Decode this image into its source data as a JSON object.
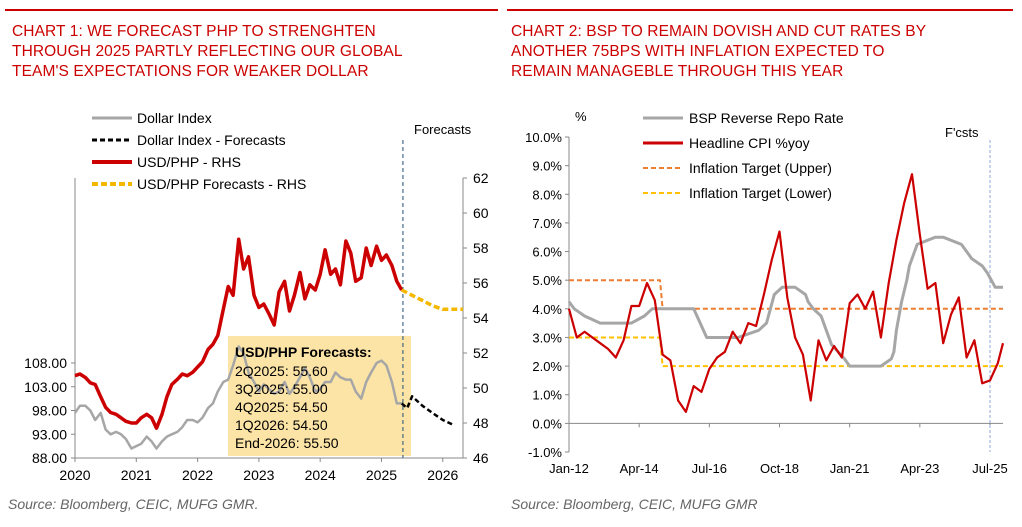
{
  "colors": {
    "accent": "#cc0000",
    "grey": "#a6a6a6",
    "black": "#000000",
    "gold": "#f5b800",
    "orange": "#ed7d31",
    "yellow": "#ffc000",
    "vline": "#1f4e79",
    "callout": "#fce4a6"
  },
  "chart1": {
    "title_lines": [
      "CHART 1: WE FORECAST PHP TO STRENGHTEN",
      "THROUGH 2025 PARTLY REFLECTING OUR GLOBAL",
      "TEAM'S EXPECTATIONS FOR WEAKER DOLLAR"
    ],
    "source": "Source: Bloomberg, CEIC, MUFG GMR.",
    "forecast_label": "Forecasts",
    "callout": {
      "title": "USD/PHP Forecasts:",
      "lines": [
        "2Q2025: 55.60",
        "3Q2025: 55.00",
        "4Q2025: 54.50",
        "1Q2026: 54.50",
        "End-2026: 55.50"
      ]
    },
    "legend": [
      "Dollar Index",
      "Dollar Index - Forecasts",
      "USD/PHP - RHS",
      "USD/PHP Forecasts - RHS"
    ],
    "left_ticks": [
      "108.00",
      "103.00",
      "98.00",
      "93.00",
      "88.00"
    ],
    "right_ticks": [
      "62",
      "60",
      "58",
      "56",
      "54",
      "52",
      "50",
      "48",
      "46"
    ],
    "x_ticks": [
      "2020",
      "2021",
      "2022",
      "2023",
      "2024",
      "2025",
      "2026"
    ]
  },
  "chart2": {
    "title_lines": [
      "CHART 2: BSP TO REMAIN DOVISH AND CUT RATES BY",
      "ANOTHER 75BPS WITH INFLATION EXPECTED TO",
      "REMAIN MANAGEBLE THROUGH THIS YEAR"
    ],
    "source": "Source: Bloomberg, CEIC, MUFG GMR",
    "unit": "%",
    "forecast_label": "F'csts",
    "legend": [
      "BSP Reverse Repo Rate",
      "Headline CPI %yoy",
      "Inflation Target (Upper)",
      "Inflation Target (Lower)"
    ],
    "y_ticks": [
      "10.0%",
      "9.0%",
      "8.0%",
      "7.0%",
      "6.0%",
      "5.0%",
      "4.0%",
      "3.0%",
      "2.0%",
      "1.0%",
      "0.0%",
      "-1.0%"
    ],
    "x_ticks": [
      "Jan-12",
      "Apr-14",
      "Jul-16",
      "Oct-18",
      "Jan-21",
      "Apr-23",
      "Jul-25"
    ]
  },
  "chart_data": [
    {
      "type": "line",
      "title": "CHART 1: WE FORECAST PHP TO STRENGHTEN THROUGH 2025 PARTLY REFLECTING OUR GLOBAL TEAM'S EXPECTATIONS FOR WEAKER DOLLAR",
      "x_range": [
        2020,
        2026.33
      ],
      "ylim_left": [
        88,
        110
      ],
      "ylim_right": [
        46,
        62
      ],
      "forecast_start": 2025.35,
      "series": [
        {
          "name": "Dollar Index",
          "axis": "left",
          "x": [
            2020,
            2020.08,
            2020.17,
            2020.25,
            2020.33,
            2020.42,
            2020.5,
            2020.58,
            2020.67,
            2020.75,
            2020.83,
            2020.92,
            2021,
            2021.08,
            2021.17,
            2021.25,
            2021.33,
            2021.42,
            2021.5,
            2021.58,
            2021.67,
            2021.75,
            2021.83,
            2021.92,
            2022,
            2022.08,
            2022.17,
            2022.25,
            2022.33,
            2022.42,
            2022.5,
            2022.58,
            2022.67,
            2022.75,
            2022.83,
            2022.92,
            2023,
            2023.08,
            2023.17,
            2023.25,
            2023.33,
            2023.42,
            2023.5,
            2023.58,
            2023.67,
            2023.75,
            2023.83,
            2023.92,
            2024,
            2024.08,
            2024.17,
            2024.25,
            2024.33,
            2024.42,
            2024.5,
            2024.58,
            2024.67,
            2024.75,
            2024.83,
            2024.92,
            2025,
            2025.08,
            2025.17,
            2025.25,
            2025.33
          ],
          "y": [
            97.5,
            99,
            99,
            98,
            96,
            97.5,
            94,
            93,
            93.5,
            93,
            92,
            90,
            90.5,
            91,
            92.5,
            91.5,
            90,
            91.5,
            92.5,
            93,
            93.5,
            94.5,
            96,
            96,
            95.5,
            96.5,
            98.5,
            99.5,
            102,
            104,
            104.5,
            107.5,
            111.5,
            110,
            106,
            104,
            102,
            103.5,
            102.5,
            101.5,
            102,
            104,
            101.5,
            103,
            105,
            107,
            105,
            102,
            102.5,
            104,
            104,
            106,
            105,
            104.5,
            104.5,
            102,
            100.5,
            104,
            106,
            108,
            108.5,
            107.5,
            104,
            99.5,
            99.5
          ]
        },
        {
          "name": "Dollar Index - Forecasts",
          "axis": "left",
          "x": [
            2025.33,
            2025.42,
            2025.5,
            2025.67,
            2025.83,
            2026,
            2026.17
          ],
          "y": [
            99.5,
            98.5,
            101,
            99,
            97.5,
            96,
            95
          ]
        },
        {
          "name": "USD/PHP - RHS",
          "axis": "right",
          "x": [
            2020,
            2020.08,
            2020.17,
            2020.25,
            2020.33,
            2020.42,
            2020.5,
            2020.58,
            2020.67,
            2020.75,
            2020.83,
            2020.92,
            2021,
            2021.08,
            2021.17,
            2021.25,
            2021.33,
            2021.42,
            2021.5,
            2021.58,
            2021.67,
            2021.75,
            2021.83,
            2021.92,
            2022,
            2022.08,
            2022.17,
            2022.25,
            2022.33,
            2022.42,
            2022.5,
            2022.58,
            2022.67,
            2022.75,
            2022.83,
            2022.92,
            2023,
            2023.08,
            2023.17,
            2023.25,
            2023.33,
            2023.42,
            2023.5,
            2023.58,
            2023.67,
            2023.75,
            2023.83,
            2023.92,
            2024,
            2024.08,
            2024.17,
            2024.25,
            2024.33,
            2024.42,
            2024.5,
            2024.58,
            2024.67,
            2024.75,
            2024.83,
            2024.92,
            2025,
            2025.08,
            2025.17,
            2025.25,
            2025.33
          ],
          "y": [
            50.7,
            50.8,
            50.6,
            50.3,
            50.2,
            49.5,
            48.9,
            48.6,
            48.5,
            48.3,
            48.1,
            48.0,
            48.0,
            48.3,
            48.5,
            48.3,
            47.7,
            48.5,
            49.5,
            50.2,
            50.5,
            50.8,
            50.7,
            50.9,
            51.2,
            51.5,
            52.2,
            52.5,
            53.0,
            54.5,
            55.8,
            55.3,
            58.5,
            56.8,
            57.5,
            55.3,
            54.6,
            54.8,
            54.2,
            53.6,
            55.5,
            56.1,
            54.4,
            55.3,
            56.6,
            55.1,
            55.9,
            55.6,
            56.5,
            57.9,
            56.5,
            56.8,
            55.9,
            58.4,
            57.7,
            56.1,
            56.3,
            58.0,
            57.0,
            58.1,
            57.3,
            57.6,
            57.0,
            56.1,
            55.6
          ]
        },
        {
          "name": "USD/PHP Forecasts - RHS",
          "axis": "right",
          "x": [
            2025.33,
            2025.5,
            2025.67,
            2025.83,
            2026,
            2026.17,
            2026.33
          ],
          "y": [
            55.6,
            55.3,
            55.0,
            54.7,
            54.5,
            54.5,
            54.5
          ]
        }
      ]
    },
    {
      "type": "line",
      "title": "CHART 2: BSP TO REMAIN DOVISH AND CUT RATES BY ANOTHER 75BPS WITH INFLATION EXPECTED TO REMAIN MANAGEBLE THROUGH THIS YEAR",
      "ylabel": "%",
      "x_range": [
        "Jan-12",
        "Dec-25"
      ],
      "ylim": [
        -1,
        10
      ],
      "forecast_start": "Jul-25",
      "series": [
        {
          "name": "BSP Reverse Repo Rate",
          "x": [
            "Jan-12",
            "Mar-12",
            "Jul-12",
            "Jan-13",
            "Jan-14",
            "Jun-14",
            "Sep-14",
            "Jan-15",
            "Jan-16",
            "Jun-16",
            "Jun-17",
            "Feb-18",
            "May-18",
            "Aug-18",
            "Nov-18",
            "Apr-19",
            "Aug-19",
            "Sep-19",
            "Nov-19",
            "Feb-20",
            "Apr-20",
            "Jun-20",
            "Nov-20",
            "Jan-21",
            "Jan-22",
            "May-22",
            "Jun-22",
            "Jul-22",
            "Sep-22",
            "Nov-22",
            "Dec-22",
            "Feb-23",
            "Mar-23",
            "Oct-23",
            "Jan-24",
            "Aug-24",
            "Oct-24",
            "Dec-24",
            "Apr-25",
            "Jun-25",
            "Sep-25",
            "Dec-25"
          ],
          "y": [
            4.25,
            4.0,
            3.75,
            3.5,
            3.5,
            3.75,
            4.0,
            4.0,
            4.0,
            3.0,
            3.0,
            3.25,
            3.5,
            4.5,
            4.75,
            4.75,
            4.5,
            4.25,
            4.0,
            3.75,
            3.25,
            2.75,
            2.25,
            2.0,
            2.0,
            2.25,
            2.5,
            3.25,
            4.25,
            5.0,
            5.5,
            6.0,
            6.25,
            6.5,
            6.5,
            6.25,
            6.0,
            5.75,
            5.5,
            5.25,
            4.75,
            4.75
          ]
        },
        {
          "name": "Headline CPI %yoy",
          "x": [
            "Jan-12",
            "Apr-12",
            "Jul-12",
            "Oct-12",
            "Jan-13",
            "Apr-13",
            "Jul-13",
            "Oct-13",
            "Jan-14",
            "Apr-14",
            "Jul-14",
            "Oct-14",
            "Jan-15",
            "Apr-15",
            "Jul-15",
            "Oct-15",
            "Jan-16",
            "Apr-16",
            "Jul-16",
            "Oct-16",
            "Jan-17",
            "Apr-17",
            "Jul-17",
            "Oct-17",
            "Jan-18",
            "Apr-18",
            "Jul-18",
            "Oct-18",
            "Jan-19",
            "Apr-19",
            "Jul-19",
            "Oct-19",
            "Jan-20",
            "Apr-20",
            "Jul-20",
            "Oct-20",
            "Jan-21",
            "Apr-21",
            "Jul-21",
            "Oct-21",
            "Jan-22",
            "Apr-22",
            "Jul-22",
            "Oct-22",
            "Jan-23",
            "Apr-23",
            "Jul-23",
            "Oct-23",
            "Jan-24",
            "Apr-24",
            "Jul-24",
            "Oct-24",
            "Jan-25",
            "Apr-25",
            "Jul-25",
            "Oct-25",
            "Dec-25"
          ],
          "y": [
            4.0,
            3.0,
            3.2,
            3.0,
            2.8,
            2.6,
            2.3,
            2.9,
            4.1,
            4.1,
            4.9,
            4.3,
            2.4,
            2.2,
            0.8,
            0.4,
            1.3,
            1.1,
            1.9,
            2.3,
            2.5,
            3.2,
            2.8,
            3.5,
            3.4,
            4.5,
            5.7,
            6.7,
            4.4,
            3.0,
            2.4,
            0.8,
            2.9,
            2.2,
            2.7,
            2.3,
            4.2,
            4.5,
            4.0,
            4.6,
            3.0,
            4.9,
            6.4,
            7.7,
            8.7,
            6.6,
            4.7,
            4.9,
            2.8,
            3.8,
            4.4,
            2.3,
            2.9,
            1.4,
            1.5,
            2.1,
            2.8
          ]
        },
        {
          "name": "Inflation Target (Upper)",
          "x": [
            "Jan-12",
            "Dec-14",
            "Jan-15",
            "Dec-25"
          ],
          "y": [
            5.0,
            5.0,
            4.0,
            4.0
          ]
        },
        {
          "name": "Inflation Target (Lower)",
          "x": [
            "Jan-12",
            "Dec-14",
            "Jan-15",
            "Dec-25"
          ],
          "y": [
            3.0,
            3.0,
            2.0,
            2.0
          ]
        }
      ]
    }
  ]
}
